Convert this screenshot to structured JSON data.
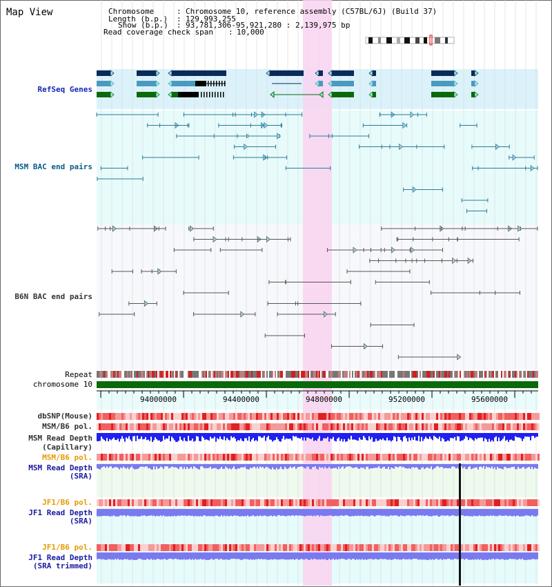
{
  "title": "Map View",
  "header": {
    "chromosome_key": "Chromosome",
    "chromosome_val": "Chromosome 10, reference assembly (C57BL/6J) (Build 37)",
    "length_key": "Length (b.p.)",
    "length_val": "129,993,255",
    "show_key": "Show (b.p.)",
    "show_val": "93,781,306-95,921,280 : 2,139,975 bp",
    "span_key": "Read coverage check span",
    "span_val": "10,000"
  },
  "tracks": {
    "refseq": "RefSeq Genes",
    "msm_bac": "MSM BAC end pairs",
    "b6n_bac": "B6N BAC end pairs",
    "repeat": "Repeat",
    "chromosome": "chromosome 10",
    "dbsnp": "dbSNP(Mouse)",
    "msm_b6_pol_1": "MSM/B6 pol.",
    "msm_read_depth_cap_1": "MSM Read Depth",
    "msm_read_depth_cap_2": "(Capillary)",
    "msm_b6_pol_2": "MSM/B6 pol.",
    "msm_read_depth_sra_1": "MSM Read Depth",
    "msm_read_depth_sra_2": "(SRA)",
    "jf1_b6_pol_1": "JF1/B6 pol.",
    "jf1_read_depth_1": "JF1 Read Depth",
    "jf1_read_depth_2": "(SRA)",
    "jf1_b6_pol_2": "JF1/B6 pol.",
    "jf1_read_depth_trim_1": "JF1 Read Depth",
    "jf1_read_depth_trim_2": "(SRA trimmed)"
  },
  "axis": {
    "ticks": [
      "94000000",
      "94400000",
      "94800000",
      "95200000",
      "95600000"
    ]
  },
  "colors": {
    "highlight": "#f9d4f0",
    "refseq_bg": "#dcf2fa",
    "navy_gene": "#0a2a5a",
    "teal_gene": "#4a9ac0",
    "green_gene": "#0a6a0a",
    "msm_bac": "#2a7a9a",
    "b6n_bac": "#555555",
    "chromosome_bar": "#0a6a0a",
    "depth_cap": "#2020f0",
    "depth_sra": "#7a7af0"
  }
}
